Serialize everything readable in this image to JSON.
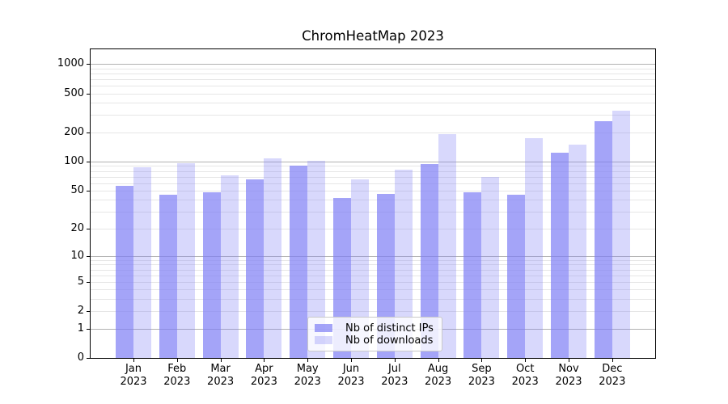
{
  "chart_data": {
    "type": "bar",
    "title": "ChromHeatMap 2023",
    "year": "2023",
    "months": [
      "Jan",
      "Feb",
      "Mar",
      "Apr",
      "May",
      "Jun",
      "Jul",
      "Aug",
      "Sep",
      "Oct",
      "Nov",
      "Dec"
    ],
    "categories": [
      "Jan 2023",
      "Feb 2023",
      "Mar 2023",
      "Apr 2023",
      "May 2023",
      "Jun 2023",
      "Jul 2023",
      "Aug 2023",
      "Sep 2023",
      "Oct 2023",
      "Nov 2023",
      "Dec 2023"
    ],
    "series": [
      {
        "name": "Nb of distinct IPs",
        "color": "rgba(126,126,245,0.7)",
        "values": [
          56,
          45,
          48,
          65,
          90,
          42,
          46,
          95,
          48,
          45,
          123,
          260
        ]
      },
      {
        "name": "Nb of downloads",
        "color": "rgba(126,126,245,0.3)",
        "values": [
          88,
          96,
          72,
          107,
          102,
          65,
          83,
          190,
          69,
          174,
          150,
          330
        ]
      }
    ],
    "xlabel": "",
    "ylabel": "",
    "yscale": "log1p",
    "ylim": [
      0,
      1410
    ],
    "yticks": [
      0,
      1,
      2,
      5,
      10,
      20,
      50,
      100,
      200,
      500,
      1000
    ],
    "major_gridlines": [
      1,
      10,
      100,
      1000
    ],
    "grid": true,
    "legend_position": "lower-center-inside",
    "colors": {
      "bar_base": "#7e7ef5",
      "major_grid": "#b2b2b2",
      "minor_grid": "#e6e6e6",
      "spine": "#000000",
      "background": "#ffffff"
    }
  }
}
